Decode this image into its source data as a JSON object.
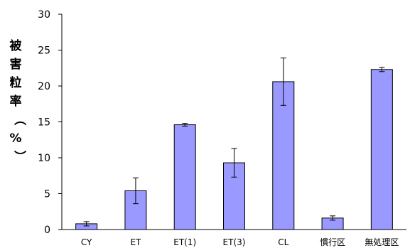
{
  "chart_data": {
    "type": "bar",
    "title": "",
    "xlabel": "",
    "ylabel": "被害粒率（%）",
    "ylim": [
      0,
      30
    ],
    "yticks": [
      0,
      5,
      10,
      15,
      20,
      25,
      30
    ],
    "grid": false,
    "categories": [
      "CY",
      "ET",
      "ET(1)",
      "ET(3)",
      "CL",
      "慣行区",
      "無処理区"
    ],
    "values": [
      0.8,
      5.4,
      14.6,
      9.3,
      20.6,
      1.6,
      22.3
    ],
    "errors": [
      0.3,
      1.8,
      0.2,
      2.0,
      3.3,
      0.3,
      0.3
    ],
    "colors": {
      "bar_fill": "#9999ff",
      "bar_stroke": "#000000",
      "axis": "#000000"
    }
  }
}
